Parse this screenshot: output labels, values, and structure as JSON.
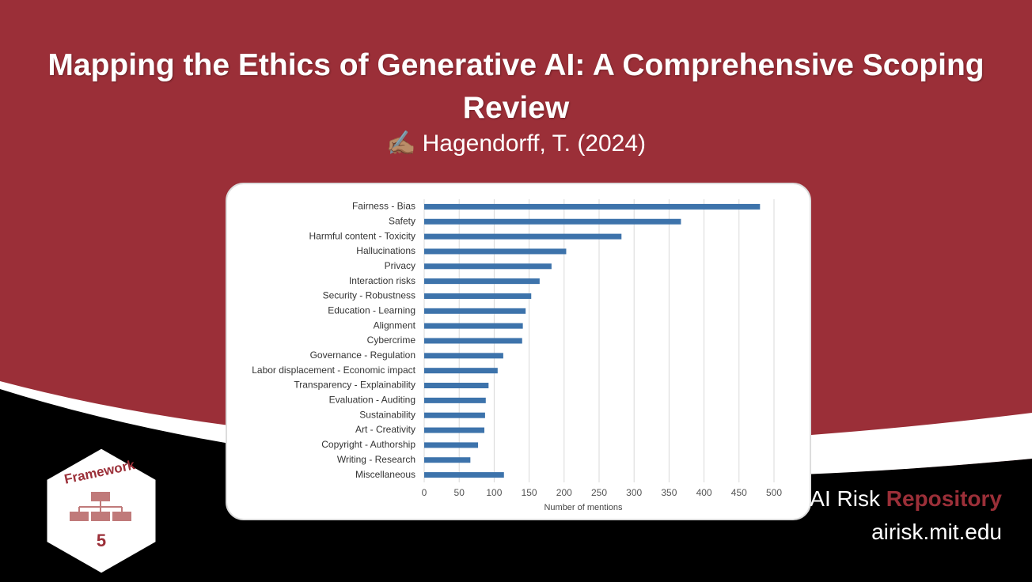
{
  "slide": {
    "title": "Mapping the Ethics of Generative AI: A Comprehensive Scoping Review",
    "author": "✍🏽 Hagendorff, T. (2024)",
    "badge_label": "Framework",
    "badge_number": "5",
    "brand_prefix": "AI Risk",
    "brand_highlight": "Repository",
    "url": "airisk.mit.edu"
  },
  "chart_data": {
    "type": "hbar",
    "categories": [
      "Fairness - Bias",
      "Safety",
      "Harmful content - Toxicity",
      "Hallucinations",
      "Privacy",
      "Interaction risks",
      "Security - Robustness",
      "Education - Learning",
      "Alignment",
      "Cybercrime",
      "Governance - Regulation",
      "Labor displacement - Economic impact",
      "Transparency - Explainability",
      "Evaluation - Auditing",
      "Sustainability",
      "Art - Creativity",
      "Copyright - Authorship",
      "Writing - Research",
      "Miscellaneous"
    ],
    "values": [
      480,
      367,
      282,
      203,
      182,
      165,
      153,
      145,
      141,
      140,
      113,
      105,
      92,
      88,
      87,
      86,
      77,
      66,
      114
    ],
    "color": "#3d73ab",
    "xlim": [
      0,
      500
    ],
    "xticks": [
      0,
      50,
      100,
      150,
      200,
      250,
      300,
      350,
      400,
      450,
      500
    ],
    "xlabel": "Number of mentions",
    "grid": true
  }
}
